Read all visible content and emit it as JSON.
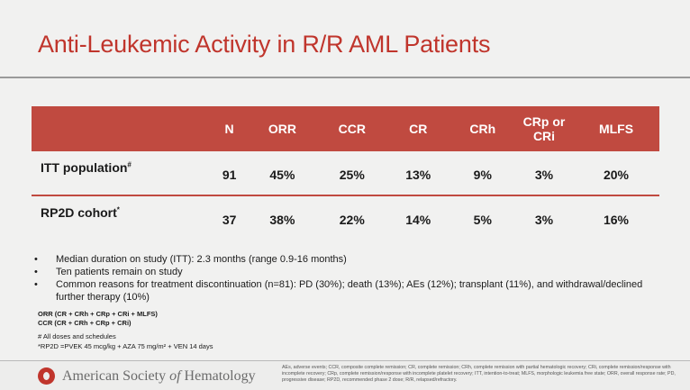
{
  "slide": {
    "title": "Anti-Leukemic Activity in R/R AML Patients"
  },
  "table": {
    "headers": [
      "",
      "N",
      "ORR",
      "CCR",
      "CR",
      "CRh",
      "CRp or CRi",
      "MLFS"
    ],
    "rows": [
      {
        "label": "ITT population",
        "sup": "#",
        "values": [
          "91",
          "45%",
          "25%",
          "13%",
          "9%",
          "3%",
          "20%"
        ]
      },
      {
        "label": "RP2D cohort",
        "sup": "*",
        "values": [
          "37",
          "38%",
          "22%",
          "14%",
          "5%",
          "3%",
          "16%"
        ]
      }
    ]
  },
  "bullets": [
    "Median duration on study (ITT): 2.3 months (range 0.9-16 months)",
    "Ten patients remain on study",
    "Common reasons for treatment discontinuation (n=81): PD (30%); death (13%); AEs (12%);  transplant (11%), and withdrawal/declined further therapy (10%)"
  ],
  "definitions": [
    "ORR (CR + CRh + CRp + CRi + MLFS)",
    "CCR (CR + CRh + CRp + CRi)"
  ],
  "notes": [
    "# All doses and schedules",
    "*RP2D =PVEK 45 mcg/kg + AZA 75 mg/m² + VEN 14 days"
  ],
  "footer": {
    "logo_pre": "American Society",
    "logo_of": "of",
    "logo_post": "Hematology",
    "abbreviations": "AEs, adverse events; CCR, composite complete remission; CR, complete remission; CRh, complete remission with partial hematologic recovery; CRi, complete remission/response with incomplete recovery; CRp, complete remission/response with incomplete platelet recovery; ITT, intention-to-treat; MLFS, morphologic leukemia free state; ORR, overall response rate; PD, progressive disease; RP2D, recommended phase 2 dose; R/R, relapsed/refractory."
  },
  "colors": {
    "title": "#c0352c",
    "header_bg": "#c04a40",
    "background": "#f1f1f0"
  }
}
